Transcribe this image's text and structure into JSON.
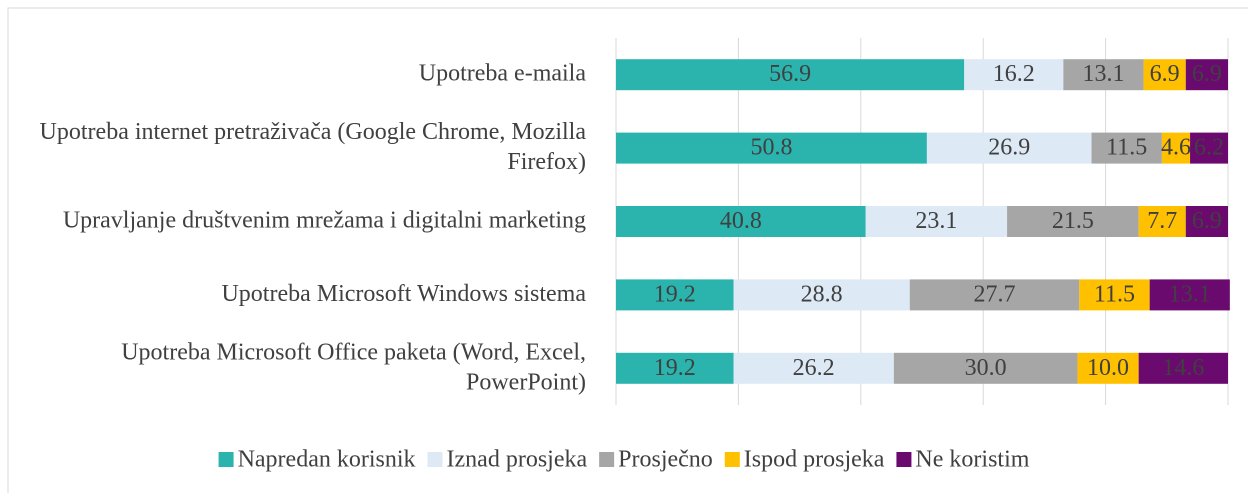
{
  "chart_data": {
    "type": "stacked_barh",
    "categories": [
      "Upotreba e-maila",
      "Upotreba internet pretraživača (Google Chrome, Mozilla Firefox)",
      "Upravljanje društvenim mrežama i digitalni marketing",
      "Upotreba Microsoft Windows sistema",
      "Upotreba Microsoft Office paketa (Word, Excel, PowerPoint)"
    ],
    "series": [
      {
        "name": "Napredan korisnik",
        "color": "#2bb3ad",
        "values": [
          56.9,
          50.8,
          40.8,
          19.2,
          19.2
        ],
        "value_labels": [
          "56.9",
          "50.8",
          "40.8",
          "19.2",
          "19.2"
        ]
      },
      {
        "name": "Iznad prosjeka",
        "color": "#dde9f5",
        "values": [
          16.2,
          26.9,
          23.1,
          28.8,
          26.2
        ],
        "value_labels": [
          "16.2",
          "26.9",
          "23.1",
          "28.8",
          "26.2"
        ]
      },
      {
        "name": "Prosječno",
        "color": "#a6a6a6",
        "values": [
          13.1,
          11.5,
          21.5,
          27.7,
          30.0
        ],
        "value_labels": [
          "13.1",
          "11.5",
          "21.5",
          "27.7",
          "30.0"
        ]
      },
      {
        "name": "Ispod prosjeka",
        "color": "#ffc000",
        "values": [
          6.9,
          4.6,
          7.7,
          11.5,
          10.0
        ],
        "value_labels": [
          "6.9",
          "4.6",
          "7.7",
          "11.5",
          "10.0"
        ]
      },
      {
        "name": "Ne koristim",
        "color": "#6a0a6e",
        "values": [
          6.9,
          6.2,
          6.9,
          13.1,
          14.6
        ],
        "value_labels": [
          "6.9",
          "6.2",
          "6.9",
          "13.1",
          "14.6"
        ]
      }
    ],
    "xlim": [
      0,
      100
    ],
    "xticks": [
      0,
      20,
      40,
      60,
      80,
      100
    ],
    "grid": true,
    "legend": "bottom"
  }
}
